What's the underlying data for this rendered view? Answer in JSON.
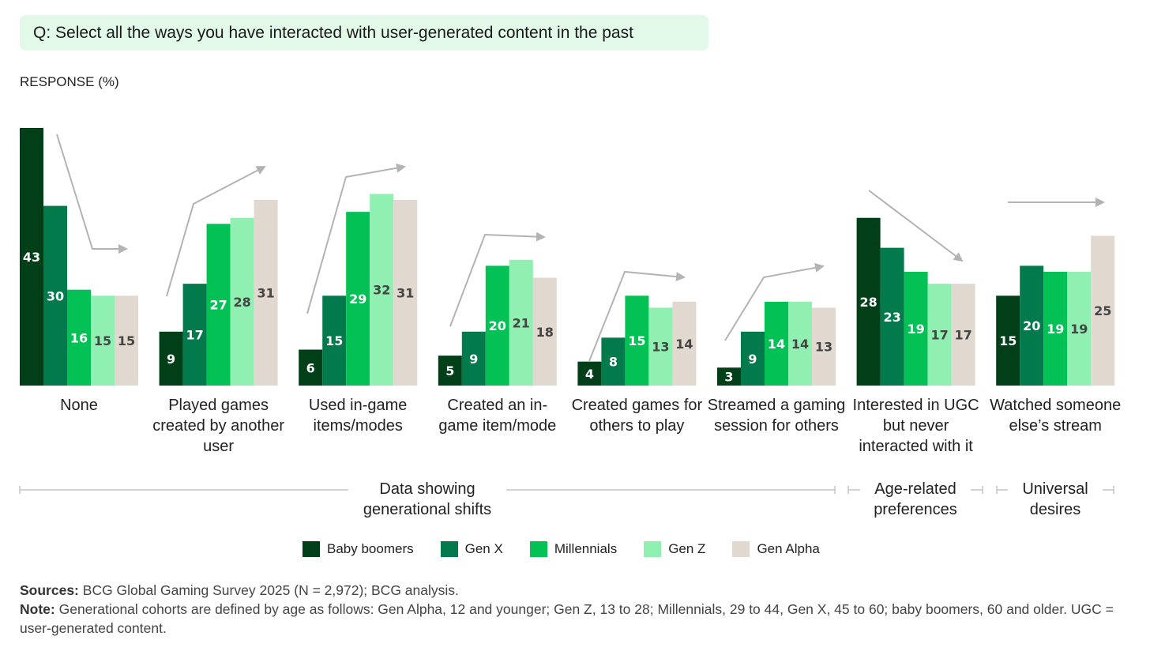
{
  "question": "Q: Select all the ways you have interacted with user-generated content in the past",
  "chart_data": {
    "type": "bar",
    "ylabel": "RESPONSE (%)",
    "ylim": [
      0,
      43
    ],
    "categories": [
      "None",
      "Played games created by another user",
      "Used in-game items/modes",
      "Created an in-game item/mode",
      "Created games for others to play",
      "Streamed a gaming session for others",
      "Interested in UGC but never interacted with it",
      "Watched someone else’s stream"
    ],
    "series": [
      {
        "name": "Baby boomers",
        "color": "#003f17",
        "label_color": "#ffffff",
        "values": [
          43,
          9,
          6,
          5,
          4,
          3,
          28,
          15
        ]
      },
      {
        "name": "Gen X",
        "color": "#027a4c",
        "label_color": "#ffffff",
        "values": [
          30,
          17,
          15,
          9,
          8,
          9,
          23,
          20
        ]
      },
      {
        "name": "Millennials",
        "color": "#03c154",
        "label_color": "#ffffff",
        "values": [
          16,
          27,
          29,
          20,
          15,
          14,
          19,
          19
        ]
      },
      {
        "name": "Gen Z",
        "color": "#8ff0b2",
        "label_color": "#444444",
        "values": [
          15,
          28,
          32,
          21,
          13,
          14,
          17,
          19
        ]
      },
      {
        "name": "Gen Alpha",
        "color": "#e1d8cf",
        "label_color": "#444444",
        "values": [
          15,
          31,
          31,
          18,
          14,
          13,
          17,
          25
        ]
      }
    ],
    "group_brackets": [
      "Data showing generational shifts",
      "Age-related preferences",
      "Universal desires"
    ],
    "trend_arrow_color": "#b3b3b3"
  },
  "footer": {
    "sources_label": "Sources:",
    "sources": "BCG Global Gaming Survey 2025 (N = 2,972); BCG analysis.",
    "note_label": "Note:",
    "note": "Generational cohorts are defined by age as follows: Gen Alpha, 12 and younger; Gen Z, 13 to 28; Millennials, 29 to 44, Gen X, 45 to 60; baby boomers, 60 and older. UGC = user-generated content."
  }
}
